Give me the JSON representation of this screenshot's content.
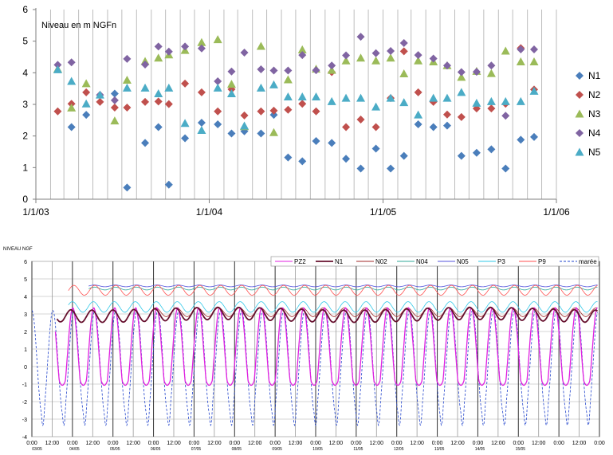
{
  "chart_data": [
    {
      "type": "scatter",
      "title": "Niveau en m NGFn",
      "xlim": [
        "2003-01-01",
        "2006-01-01"
      ],
      "ylim": [
        0,
        6
      ],
      "x_tick_labels": [
        "1/1/03",
        "1/1/04",
        "1/1/05",
        "1/1/06"
      ],
      "y_tick_labels": [
        "0",
        "1",
        "2",
        "3",
        "4",
        "5",
        "6"
      ],
      "grid": "vertical",
      "legend_position": "right",
      "series": [
        {
          "name": "N1",
          "color": "#4a7ebb",
          "marker": "diamond",
          "x": [
            "2003-03-17",
            "2003-04-17",
            "2003-06-16",
            "2003-07-12",
            "2003-08-19",
            "2003-09-16",
            "2003-10-08",
            "2003-11-11",
            "2003-12-16",
            "2004-01-19",
            "2004-02-17",
            "2004-03-15",
            "2004-04-19",
            "2004-05-16",
            "2004-06-15",
            "2004-07-15",
            "2004-08-13",
            "2004-09-15",
            "2004-10-15",
            "2004-11-15",
            "2004-12-17",
            "2005-01-17",
            "2005-02-14",
            "2005-03-16",
            "2005-04-17",
            "2005-05-16",
            "2005-06-15",
            "2005-07-17",
            "2005-08-17",
            "2005-09-16",
            "2005-10-18",
            "2005-11-15"
          ],
          "y": [
            2.28,
            2.67,
            3.34,
            0.37,
            1.78,
            2.28,
            0.46,
            1.93,
            2.42,
            2.37,
            2.08,
            2.15,
            2.08,
            2.67,
            1.32,
            1.2,
            1.84,
            1.78,
            1.28,
            0.97,
            1.6,
            0.97,
            1.37,
            2.37,
            2.28,
            2.33,
            1.37,
            1.47,
            1.58,
            0.97,
            1.88,
            1.97
          ]
        },
        {
          "name": "N2",
          "color": "#c0504d",
          "marker": "diamond",
          "x": [
            "2003-02-16",
            "2003-03-17",
            "2003-04-17",
            "2003-05-16",
            "2003-06-16",
            "2003-07-12",
            "2003-08-19",
            "2003-09-16",
            "2003-10-08",
            "2003-11-11",
            "2003-12-16",
            "2004-01-19",
            "2004-02-17",
            "2004-03-15",
            "2004-04-19",
            "2004-05-16",
            "2004-06-15",
            "2004-07-15",
            "2004-08-13",
            "2004-09-15",
            "2004-10-15",
            "2004-11-15",
            "2004-12-17",
            "2005-01-17",
            "2005-02-14",
            "2005-03-16",
            "2005-04-17",
            "2005-05-16",
            "2005-06-15",
            "2005-07-17",
            "2005-08-17",
            "2005-09-16",
            "2005-10-18",
            "2005-11-15"
          ],
          "y": [
            2.78,
            3.02,
            3.38,
            3.08,
            2.9,
            2.9,
            3.08,
            3.09,
            3.01,
            3.66,
            3.38,
            2.78,
            3.48,
            2.65,
            2.78,
            2.8,
            2.83,
            3.02,
            2.78,
            4.02,
            2.28,
            2.52,
            2.28,
            3.2,
            4.68,
            3.38,
            3.08,
            2.68,
            2.6,
            2.87,
            2.87,
            3.02,
            4.78,
            3.47
          ]
        },
        {
          "name": "N3",
          "color": "#9bbb59",
          "marker": "triangle",
          "x": [
            "2003-02-16",
            "2003-03-17",
            "2003-04-17",
            "2003-06-16",
            "2003-07-12",
            "2003-08-19",
            "2003-09-16",
            "2003-10-08",
            "2003-11-11",
            "2003-12-16",
            "2004-01-19",
            "2004-02-17",
            "2004-03-15",
            "2004-04-19",
            "2004-05-16",
            "2004-06-15",
            "2004-07-15",
            "2004-08-13",
            "2004-09-15",
            "2004-10-15",
            "2004-11-15",
            "2004-12-17",
            "2005-01-17",
            "2005-02-14",
            "2005-03-16",
            "2005-04-17",
            "2005-05-16",
            "2005-06-15",
            "2005-07-17",
            "2005-08-17",
            "2005-09-16",
            "2005-10-18",
            "2005-11-15"
          ],
          "y": [
            4.12,
            2.89,
            3.66,
            2.48,
            3.77,
            4.36,
            4.47,
            4.57,
            4.71,
            4.96,
            5.05,
            3.64,
            2.3,
            4.84,
            2.11,
            3.78,
            4.73,
            4.12,
            4.08,
            4.38,
            4.47,
            4.38,
            4.47,
            3.97,
            4.38,
            4.35,
            4.23,
            3.86,
            4.05,
            3.98,
            4.69,
            4.35,
            4.35
          ]
        },
        {
          "name": "N4",
          "color": "#8064a2",
          "marker": "diamond",
          "x": [
            "2003-02-16",
            "2003-03-17",
            "2003-05-16",
            "2003-06-16",
            "2003-07-12",
            "2003-08-19",
            "2003-09-16",
            "2003-10-08",
            "2003-11-11",
            "2003-12-16",
            "2004-01-19",
            "2004-02-17",
            "2004-03-15",
            "2004-04-19",
            "2004-05-16",
            "2004-06-15",
            "2004-07-15",
            "2004-08-13",
            "2004-09-15",
            "2004-10-15",
            "2004-11-15",
            "2004-12-17",
            "2005-01-17",
            "2005-02-14",
            "2005-03-16",
            "2005-04-17",
            "2005-05-16",
            "2005-06-15",
            "2005-07-17",
            "2005-08-17",
            "2005-09-16",
            "2005-10-18",
            "2005-11-15"
          ],
          "y": [
            4.25,
            4.33,
            3.3,
            3.13,
            4.44,
            4.26,
            4.83,
            4.67,
            4.83,
            4.77,
            3.73,
            4.04,
            4.64,
            4.11,
            4.07,
            4.07,
            4.56,
            4.08,
            4.23,
            4.55,
            5.14,
            4.62,
            4.69,
            4.94,
            4.56,
            4.45,
            4.23,
            4.02,
            4.03,
            4.23,
            2.64,
            4.74,
            4.74
          ]
        },
        {
          "name": "N5",
          "color": "#4bacc6",
          "marker": "triangle",
          "x": [
            "2003-02-16",
            "2003-03-17",
            "2003-04-17",
            "2003-05-16",
            "2003-07-12",
            "2003-08-19",
            "2003-09-16",
            "2003-10-08",
            "2003-11-11",
            "2003-12-16",
            "2004-01-19",
            "2004-02-17",
            "2004-03-15",
            "2004-04-19",
            "2004-05-16",
            "2004-06-15",
            "2004-07-15",
            "2004-08-13",
            "2004-09-15",
            "2004-10-15",
            "2004-11-15",
            "2004-12-17",
            "2005-01-17",
            "2005-02-14",
            "2005-03-16",
            "2005-04-17",
            "2005-05-16",
            "2005-06-15",
            "2005-07-17",
            "2005-08-17",
            "2005-09-16",
            "2005-10-18",
            "2005-11-15"
          ],
          "y": [
            4.1,
            3.73,
            3.02,
            3.3,
            3.52,
            3.52,
            3.34,
            3.52,
            2.4,
            2.18,
            3.52,
            3.34,
            2.32,
            3.52,
            3.62,
            3.24,
            3.24,
            3.24,
            3.09,
            3.2,
            3.2,
            2.92,
            3.2,
            3.06,
            2.67,
            3.2,
            3.2,
            3.38,
            3.04,
            3.09,
            3.09,
            3.09,
            3.42
          ]
        }
      ]
    },
    {
      "type": "line",
      "ylabel": "NIVEAU NGF",
      "ylim": [
        -4,
        6
      ],
      "y_tick_labels": [
        "-4",
        "-3",
        "-2",
        "-1",
        "0",
        "1",
        "2",
        "3",
        "4",
        "5",
        "6"
      ],
      "x_tick_labels": [
        "0:00",
        "12:00",
        "0:00",
        "12:00",
        "0:00",
        "12:00",
        "0:00",
        "12:00",
        "0:00",
        "12:00",
        "0:00",
        "12:00",
        "0:00",
        "12:00",
        "0:00",
        "12:00",
        "0:00",
        "12:00",
        "0:00",
        "12:00",
        "0:00",
        "12:00",
        "0:00",
        "12:00",
        "0:00",
        "12:00",
        "0:00",
        "12:00",
        "0:00"
      ],
      "x_date_labels": [
        "03/05",
        "04/05",
        "05/05",
        "06/05",
        "07/05",
        "08/05",
        "09/05",
        "10/05",
        "11/05",
        "12/05",
        "13/05",
        "14/05",
        "15/05"
      ],
      "grid": true,
      "legend_position": "top",
      "series": [
        {
          "name": "PZ2",
          "color": "#e020e0",
          "style": "solid",
          "model": {
            "mean": 0.95,
            "amp": 2.6,
            "offset": 0.05,
            "start": 0.58
          }
        },
        {
          "name": "N1",
          "color": "#66102e",
          "style": "solid",
          "model": {
            "mean": 2.95,
            "amp": 0.35,
            "offset": 0.22,
            "start": 0.62
          }
        },
        {
          "name": "N02",
          "color": "#a02828",
          "style": "solid",
          "model": {
            "mean": 3.1,
            "amp": 0.25,
            "offset": 0.18,
            "start": 3.0
          }
        },
        {
          "name": "N04",
          "color": "#30a898",
          "style": "solid",
          "model": {
            "mean": 4.45,
            "amp": 0.08,
            "offset": 0.1,
            "start": 1.4
          }
        },
        {
          "name": "N05",
          "color": "#5555dd",
          "style": "solid",
          "model": {
            "mean": 4.6,
            "amp": 0.05,
            "offset": 0.1,
            "start": 1.4
          }
        },
        {
          "name": "P3",
          "color": "#30c8e8",
          "style": "solid",
          "model": {
            "mean": 3.4,
            "amp": 0.3,
            "offset": 0.15,
            "start": 0.9
          }
        },
        {
          "name": "P9",
          "color": "#ff5050",
          "style": "solid",
          "model": {
            "mean": 4.35,
            "amp": 0.28,
            "offset": 0.08,
            "start": 0.9
          }
        },
        {
          "name": "marée",
          "color": "#2244cc",
          "style": "dashed",
          "model": {
            "mean": 0.2,
            "amp": 3.0,
            "offset": 0.0,
            "start": 0.0
          }
        }
      ],
      "period_days": 0.5175,
      "x_range_days": [
        0,
        14
      ]
    }
  ]
}
